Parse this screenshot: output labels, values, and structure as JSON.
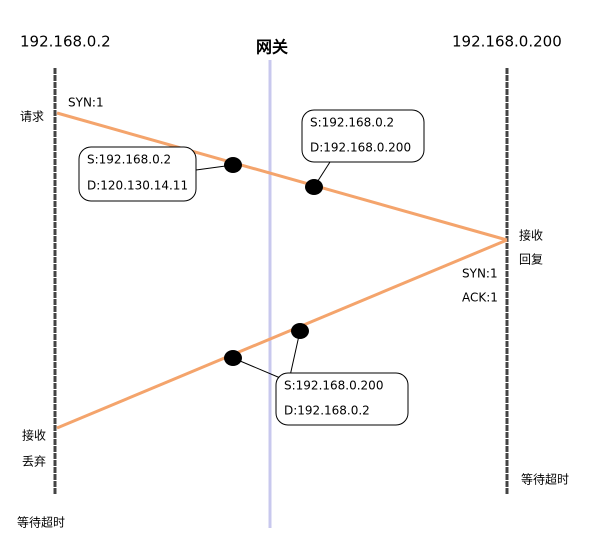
{
  "hosts": {
    "left": "192.168.0.2",
    "gateway": "网关",
    "right": "192.168.0.200"
  },
  "left_labels": {
    "request": "请求",
    "syn": "SYN:1",
    "receive": "接收",
    "discard": "丢弃",
    "wait": "等待超时"
  },
  "right_labels": {
    "receive": "接收",
    "reply": "回复",
    "syn": "SYN:1",
    "ack": "ACK:1",
    "wait": "等待超时"
  },
  "boxes": [
    {
      "source": "S:192.168.0.2",
      "dest": "D:120.130.14.11"
    },
    {
      "source": "S:192.168.0.2",
      "dest": "D:192.168.0.200"
    },
    {
      "source": "S:192.168.0.200",
      "dest": "D:192.168.0.2"
    }
  ]
}
